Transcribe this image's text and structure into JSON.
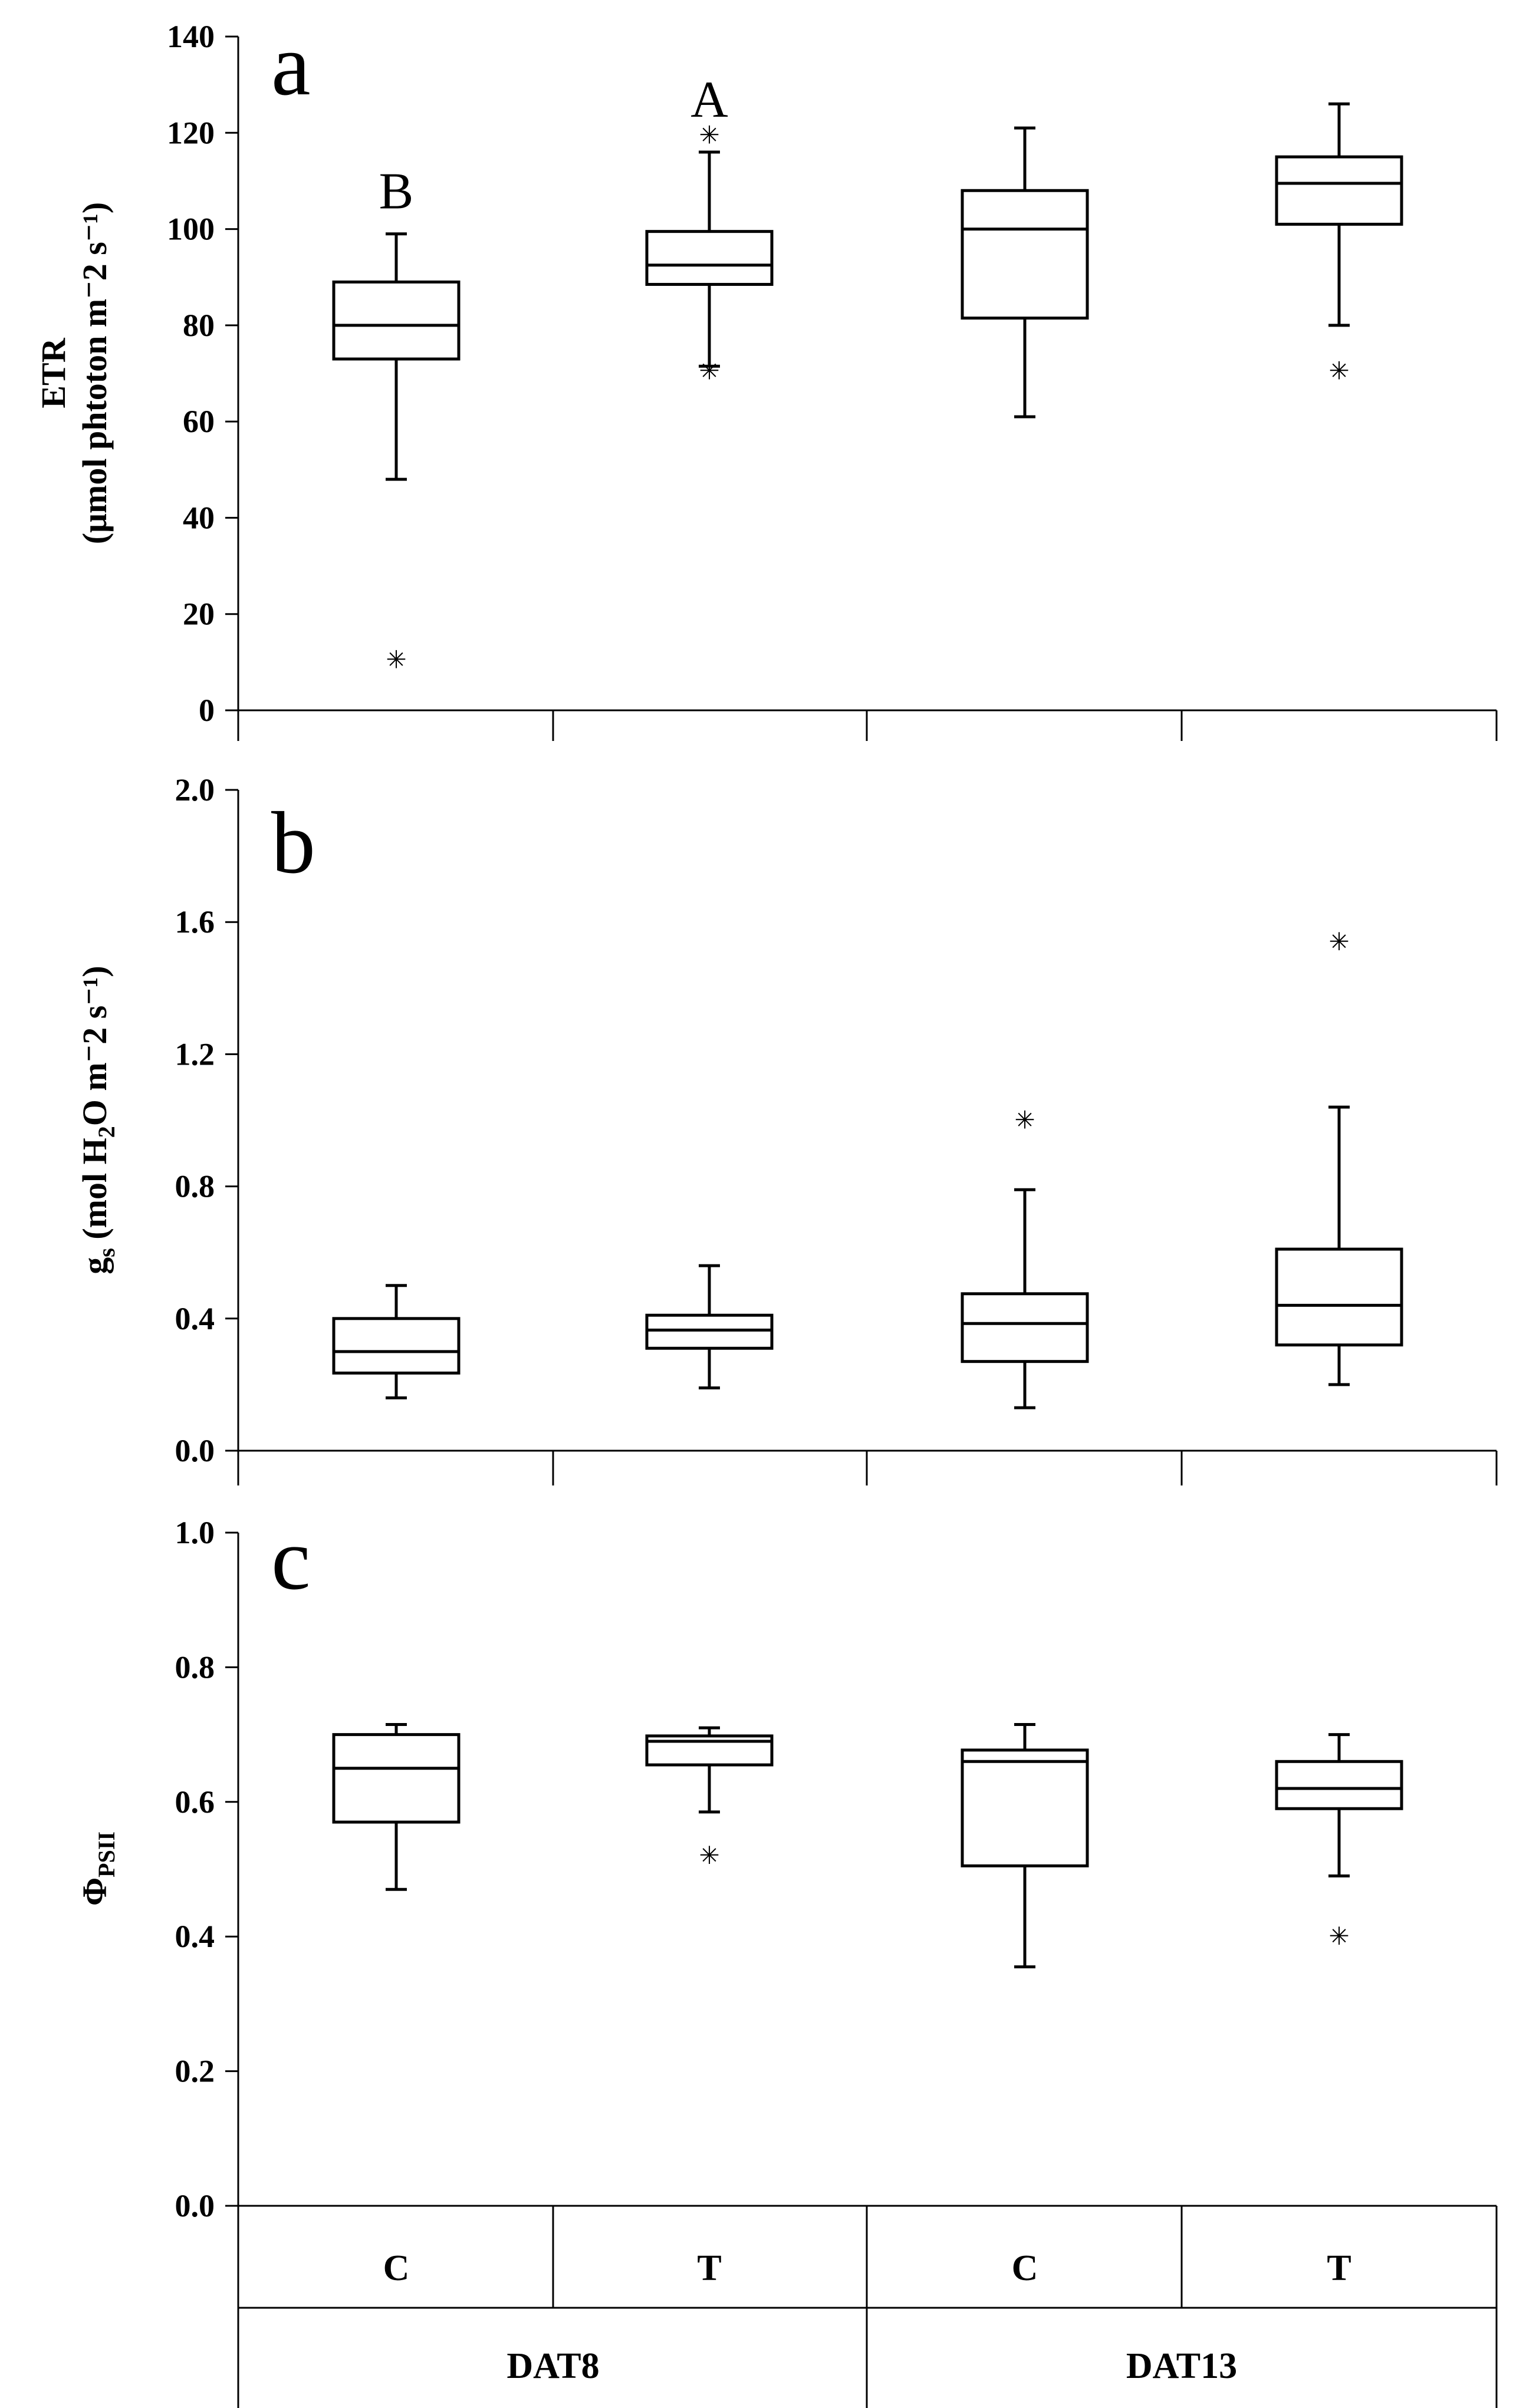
{
  "chart_data": [
    {
      "type": "box",
      "panel_label": "a",
      "ylabel_line1": "ETR",
      "ylabel_line2": "(μmol phtoton m⁻2 s⁻¹)",
      "ylim": [
        0,
        140
      ],
      "yticks": [
        "0",
        "20",
        "40",
        "60",
        "80",
        "100",
        "120",
        "140"
      ],
      "ytick_values": [
        0,
        20,
        40,
        60,
        80,
        100,
        120,
        140
      ],
      "boxes": [
        {
          "group": "DAT8",
          "treatment": "C",
          "min": 48,
          "q1": 73,
          "median": 80,
          "q3": 89,
          "max": 99,
          "outliers": [
            10.5
          ],
          "sig": "B",
          "sig_y": 108
        },
        {
          "group": "DAT8",
          "treatment": "T",
          "min": 71.5,
          "q1": 88.5,
          "median": 92.5,
          "q3": 99.5,
          "max": 116,
          "outliers": [
            119.5,
            70.5
          ],
          "sig": "A",
          "sig_y": 127
        },
        {
          "group": "DAT13",
          "treatment": "C",
          "min": 61,
          "q1": 81.5,
          "median": 100,
          "q3": 108,
          "max": 121,
          "outliers": [],
          "sig": "",
          "sig_y": 0
        },
        {
          "group": "DAT13",
          "treatment": "T",
          "min": 80,
          "q1": 101,
          "median": 109.5,
          "q3": 115,
          "max": 126,
          "outliers": [
            70.5
          ],
          "sig": "",
          "sig_y": 0
        }
      ]
    },
    {
      "type": "box",
      "panel_label": "b",
      "ylabel_main": "g",
      "ylabel_sub": "s",
      "ylabel_rest1": " (mol H",
      "ylabel_sub2": "2",
      "ylabel_rest2": "O m⁻2 s⁻¹)",
      "ylim": [
        0,
        2.0
      ],
      "yticks": [
        "0.0",
        "0.4",
        "0.8",
        "1.2",
        "1.6",
        "2.0"
      ],
      "ytick_values": [
        0,
        0.4,
        0.8,
        1.2,
        1.6,
        2.0
      ],
      "boxes": [
        {
          "group": "DAT8",
          "treatment": "C",
          "min": 0.16,
          "q1": 0.235,
          "median": 0.3,
          "q3": 0.4,
          "max": 0.5,
          "outliers": []
        },
        {
          "group": "DAT8",
          "treatment": "T",
          "min": 0.19,
          "q1": 0.31,
          "median": 0.365,
          "q3": 0.41,
          "max": 0.56,
          "outliers": []
        },
        {
          "group": "DAT13",
          "treatment": "C",
          "min": 0.13,
          "q1": 0.27,
          "median": 0.385,
          "q3": 0.475,
          "max": 0.79,
          "outliers": [
            1.0
          ]
        },
        {
          "group": "DAT13",
          "treatment": "T",
          "min": 0.2,
          "q1": 0.32,
          "median": 0.44,
          "q3": 0.61,
          "max": 1.04,
          "outliers": [
            1.54
          ]
        }
      ]
    },
    {
      "type": "box",
      "panel_label": "c",
      "ylabel_main": "Φ",
      "ylabel_sub": "PSII",
      "ylim": [
        0,
        1.0
      ],
      "yticks": [
        "0.0",
        "0.2",
        "0.4",
        "0.6",
        "0.8",
        "1.0"
      ],
      "ytick_values": [
        0,
        0.2,
        0.4,
        0.6,
        0.8,
        1.0
      ],
      "boxes": [
        {
          "group": "DAT8",
          "treatment": "C",
          "min": 0.47,
          "q1": 0.57,
          "median": 0.65,
          "q3": 0.7,
          "max": 0.715,
          "outliers": []
        },
        {
          "group": "DAT8",
          "treatment": "T",
          "min": 0.585,
          "q1": 0.655,
          "median": 0.69,
          "q3": 0.698,
          "max": 0.71,
          "outliers": [
            0.52
          ]
        },
        {
          "group": "DAT13",
          "treatment": "C",
          "min": 0.355,
          "q1": 0.505,
          "median": 0.66,
          "q3": 0.677,
          "max": 0.715,
          "outliers": []
        },
        {
          "group": "DAT13",
          "treatment": "T",
          "min": 0.49,
          "q1": 0.59,
          "median": 0.62,
          "q3": 0.66,
          "max": 0.7,
          "outliers": [
            0.4
          ]
        }
      ]
    }
  ],
  "categories": [
    "C",
    "T",
    "C",
    "T"
  ],
  "groups": [
    "DAT8",
    "DAT13"
  ],
  "outlier_symbol": "✳"
}
